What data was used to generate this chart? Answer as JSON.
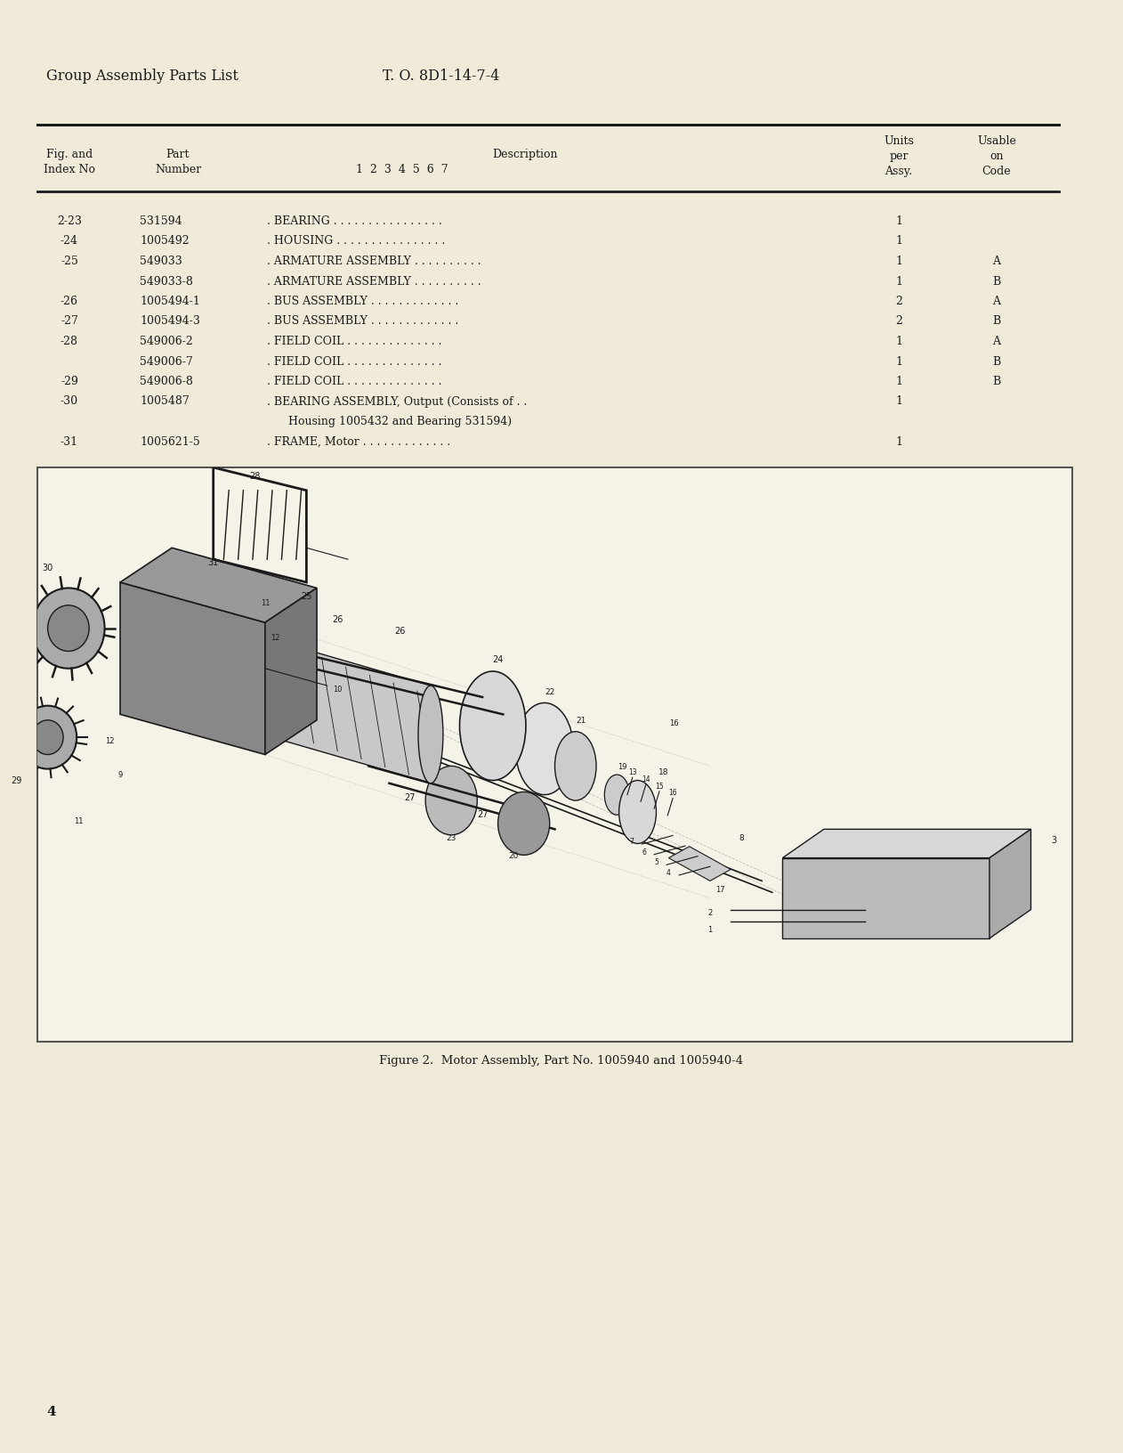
{
  "page_bg": "#f0ead8",
  "header_left": "Group Assembly Parts List",
  "header_center": "T. O. 8D1-14-7-4",
  "text_color": "#1a1a1a",
  "line_color": "#1a1a1a",
  "rows": [
    {
      "fig": "2-23",
      "part": "531594",
      "desc": ". BEARING . . . . . . . . . . . . . . . .",
      "units": "1",
      "usable": ""
    },
    {
      "fig": "-24",
      "part": "1005492",
      "desc": ". HOUSING . . . . . . . . . . . . . . . .",
      "units": "1",
      "usable": ""
    },
    {
      "fig": "-25",
      "part": "549033",
      "desc": ". ARMATURE ASSEMBLY . . . . . . . . . .",
      "units": "1",
      "usable": "A"
    },
    {
      "fig": "",
      "part": "549033-8",
      "desc": ". ARMATURE ASSEMBLY . . . . . . . . . .",
      "units": "1",
      "usable": "B"
    },
    {
      "fig": "-26",
      "part": "1005494-1",
      "desc": ". BUS ASSEMBLY . . . . . . . . . . . . .",
      "units": "2",
      "usable": "A"
    },
    {
      "fig": "-27",
      "part": "1005494-3",
      "desc": ". BUS ASSEMBLY . . . . . . . . . . . . .",
      "units": "2",
      "usable": "B"
    },
    {
      "fig": "-28",
      "part": "549006-2",
      "desc": ". FIELD COIL . . . . . . . . . . . . . .",
      "units": "1",
      "usable": "A"
    },
    {
      "fig": "",
      "part": "549006-7",
      "desc": ". FIELD COIL . . . . . . . . . . . . . .",
      "units": "1",
      "usable": "B"
    },
    {
      "fig": "-29",
      "part": "549006-8",
      "desc": ". FIELD COIL . . . . . . . . . . . . . .",
      "units": "1",
      "usable": "B"
    },
    {
      "fig": "-30",
      "part": "1005487",
      "desc": ". BEARING ASSEMBLY, Output (Consists of . .",
      "units": "1",
      "usable": ""
    },
    {
      "fig": "",
      "part": "",
      "desc": "      Housing 1005432 and Bearing 531594)",
      "units": "",
      "usable": ""
    },
    {
      "fig": "-31",
      "part": "1005621-5",
      "desc": ". FRAME, Motor . . . . . . . . . . . . .",
      "units": "1",
      "usable": ""
    }
  ],
  "figure_caption": "Figure 2.  Motor Assembly, Part No. 1005940 and 1005940-4",
  "page_number": "4"
}
